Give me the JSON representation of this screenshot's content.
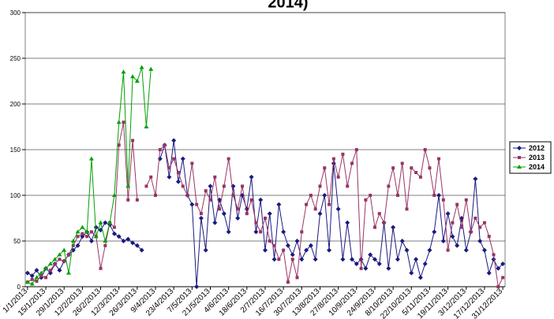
{
  "chart_data": {
    "type": "line",
    "title": "2014)",
    "categories": [
      "1/1/2013",
      null,
      null,
      null,
      "15/1/2013",
      null,
      null,
      null,
      "29/1/2013",
      null,
      null,
      null,
      "12/2/2013",
      null,
      null,
      null,
      "26/2/2013",
      null,
      null,
      null,
      "12/3/2013",
      null,
      null,
      null,
      "26/3/2013",
      null,
      null,
      null,
      "9/4/2013",
      null,
      null,
      null,
      "23/4/2013",
      null,
      null,
      null,
      "7/5/2013",
      null,
      null,
      null,
      "21/5/2013",
      null,
      null,
      null,
      "4/6/2013",
      null,
      null,
      null,
      "18/6/2013",
      null,
      null,
      null,
      "2/7/2013",
      null,
      null,
      null,
      "16/7/2013",
      null,
      null,
      null,
      "30/7/2013",
      null,
      null,
      null,
      "13/8/2013",
      null,
      null,
      null,
      "27/8/2013",
      null,
      null,
      null,
      "10/9/2013",
      null,
      null,
      null,
      "24/9/2013",
      null,
      null,
      null,
      "8/10/2013",
      null,
      null,
      null,
      "22/10/2013",
      null,
      null,
      null,
      "5/11/2013",
      null,
      null,
      null,
      "19/11/2013",
      null,
      null,
      null,
      "3/12/2013",
      null,
      null,
      null,
      "17/12/2013",
      null,
      null,
      null,
      "31/12/2013"
    ],
    "series": [
      {
        "name": "2012",
        "color": "#1a1a80",
        "marker": "diamond",
        "values": [
          15,
          12,
          18,
          10,
          20,
          15,
          25,
          18,
          28,
          35,
          40,
          45,
          55,
          60,
          50,
          65,
          62,
          70,
          68,
          58,
          55,
          50,
          52,
          48,
          45,
          40,
          null,
          null,
          null,
          140,
          155,
          120,
          160,
          115,
          140,
          100,
          90,
          0,
          75,
          40,
          110,
          70,
          95,
          80,
          60,
          110,
          75,
          100,
          85,
          120,
          60,
          95,
          40,
          80,
          30,
          90,
          60,
          45,
          35,
          50,
          30,
          40,
          45,
          30,
          80,
          100,
          40,
          135,
          85,
          30,
          70,
          30,
          25,
          30,
          20,
          35,
          30,
          25,
          70,
          20,
          65,
          30,
          50,
          40,
          15,
          30,
          10,
          25,
          40,
          60,
          100,
          50,
          80,
          55,
          45,
          75,
          40,
          60,
          118,
          50,
          40,
          15,
          30,
          20,
          25
        ]
      },
      {
        "name": "2013",
        "color": "#993366",
        "marker": "square",
        "values": [
          5,
          8,
          6,
          12,
          10,
          18,
          25,
          30,
          28,
          35,
          45,
          55,
          58,
          55,
          60,
          55,
          20,
          45,
          70,
          65,
          155,
          180,
          95,
          160,
          95,
          null,
          110,
          120,
          100,
          150,
          155,
          130,
          140,
          125,
          110,
          100,
          135,
          90,
          80,
          105,
          95,
          120,
          85,
          110,
          140,
          100,
          85,
          110,
          80,
          95,
          70,
          60,
          75,
          50,
          45,
          30,
          40,
          5,
          30,
          10,
          60,
          90,
          100,
          85,
          110,
          130,
          90,
          140,
          120,
          145,
          110,
          135,
          150,
          20,
          95,
          100,
          65,
          80,
          70,
          110,
          130,
          100,
          135,
          85,
          130,
          125,
          120,
          150,
          130,
          100,
          140,
          95,
          40,
          70,
          90,
          65,
          95,
          60,
          75,
          65,
          70,
          55,
          35,
          0,
          10
        ]
      },
      {
        "name": "2014",
        "color": "#00a000",
        "marker": "triangle",
        "values": [
          5,
          3,
          10,
          15,
          20,
          25,
          30,
          35,
          40,
          15,
          50,
          60,
          65,
          60,
          140,
          55,
          70,
          50,
          70,
          100,
          180,
          235,
          110,
          230,
          225,
          240,
          175,
          238,
          null,
          null,
          null,
          null,
          null,
          null,
          null,
          null,
          null,
          null,
          null,
          null,
          null,
          null,
          null,
          null,
          null,
          null,
          null,
          null,
          null,
          null,
          null,
          null,
          null,
          null,
          null,
          null,
          null,
          null,
          null,
          null,
          null,
          null,
          null,
          null,
          null,
          null,
          null,
          null,
          null,
          null,
          null,
          null,
          null,
          null,
          null,
          null,
          null,
          null,
          null,
          null,
          null,
          null,
          null,
          null,
          null,
          null,
          null,
          null,
          null,
          null,
          null,
          null,
          null,
          null,
          null,
          null,
          null,
          null,
          null,
          null,
          null,
          null,
          null,
          null,
          null
        ]
      }
    ],
    "ylim": [
      0,
      300
    ],
    "yticks": [
      0,
      50,
      100,
      150,
      200,
      250,
      300
    ],
    "grid": true,
    "legend": "right"
  }
}
